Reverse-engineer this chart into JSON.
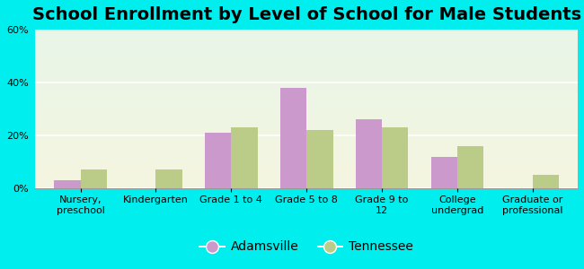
{
  "title": "School Enrollment by Level of School for Male Students",
  "categories": [
    "Nursery,\npreschool",
    "Kindergarten",
    "Grade 1 to 4",
    "Grade 5 to 8",
    "Grade 9 to\n12",
    "College\nundergrad",
    "Graduate or\nprofessional"
  ],
  "adamsville": [
    3,
    0,
    21,
    38,
    26,
    12,
    0
  ],
  "tennessee": [
    7,
    7,
    23,
    22,
    23,
    16,
    5
  ],
  "bar_color_adamsville": "#cc99cc",
  "bar_color_tennessee": "#bbcc88",
  "ylim": [
    0,
    60
  ],
  "yticks": [
    0,
    20,
    40,
    60
  ],
  "ytick_labels": [
    "0%",
    "20%",
    "40%",
    "60%"
  ],
  "background_color": "#00eeee",
  "plot_bg_colors": [
    "#e8f5e8",
    "#f5f5e0"
  ],
  "legend_labels": [
    "Adamsville",
    "Tennessee"
  ],
  "bar_width": 0.35,
  "title_fontsize": 14,
  "tick_fontsize": 8,
  "legend_fontsize": 10
}
